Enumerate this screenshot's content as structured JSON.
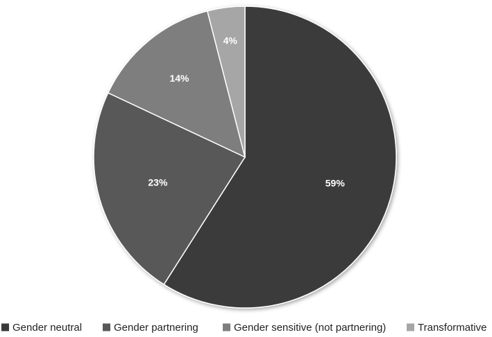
{
  "chart_data": {
    "type": "pie",
    "categories": [
      "Gender neutral",
      "Gender partnering",
      "Gender sensitive (not partnering)",
      "Transformative"
    ],
    "values": [
      59,
      23,
      14,
      4
    ],
    "data_labels": [
      "59%",
      "23%",
      "14%",
      "4%"
    ],
    "colors": [
      "#3a3a3a",
      "#595959",
      "#7e7e7e",
      "#a6a6a6"
    ],
    "legend_position": "bottom",
    "start_angle": "12 o'clock",
    "direction": "clockwise"
  }
}
